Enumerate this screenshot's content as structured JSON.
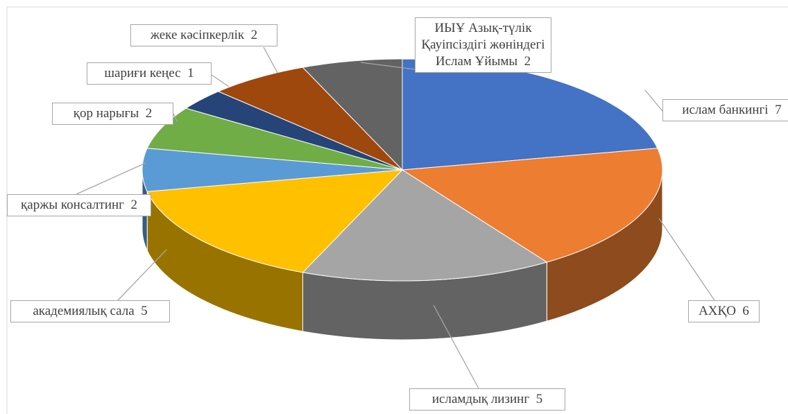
{
  "chart_data": {
    "type": "pie3d",
    "categories": [
      "ислам банкингі",
      "АХҚО",
      "исламдық лизинг",
      "академиялық сала",
      "қаржы консалтинг",
      "қор нарығы",
      "шариғи кеңес",
      "жеке кәсіпкерлік",
      "ИЫҰ Азық-түлік Қауіпсіздігі жөніндегі Ислам Ұйымы"
    ],
    "values": [
      7,
      6,
      5,
      5,
      2,
      2,
      1,
      2,
      2
    ],
    "colors": [
      "#4472c4",
      "#ed7d31",
      "#a5a5a5",
      "#ffc000",
      "#5b9bd5",
      "#70ad47",
      "#264478",
      "#9e480e",
      "#636363"
    ]
  }
}
